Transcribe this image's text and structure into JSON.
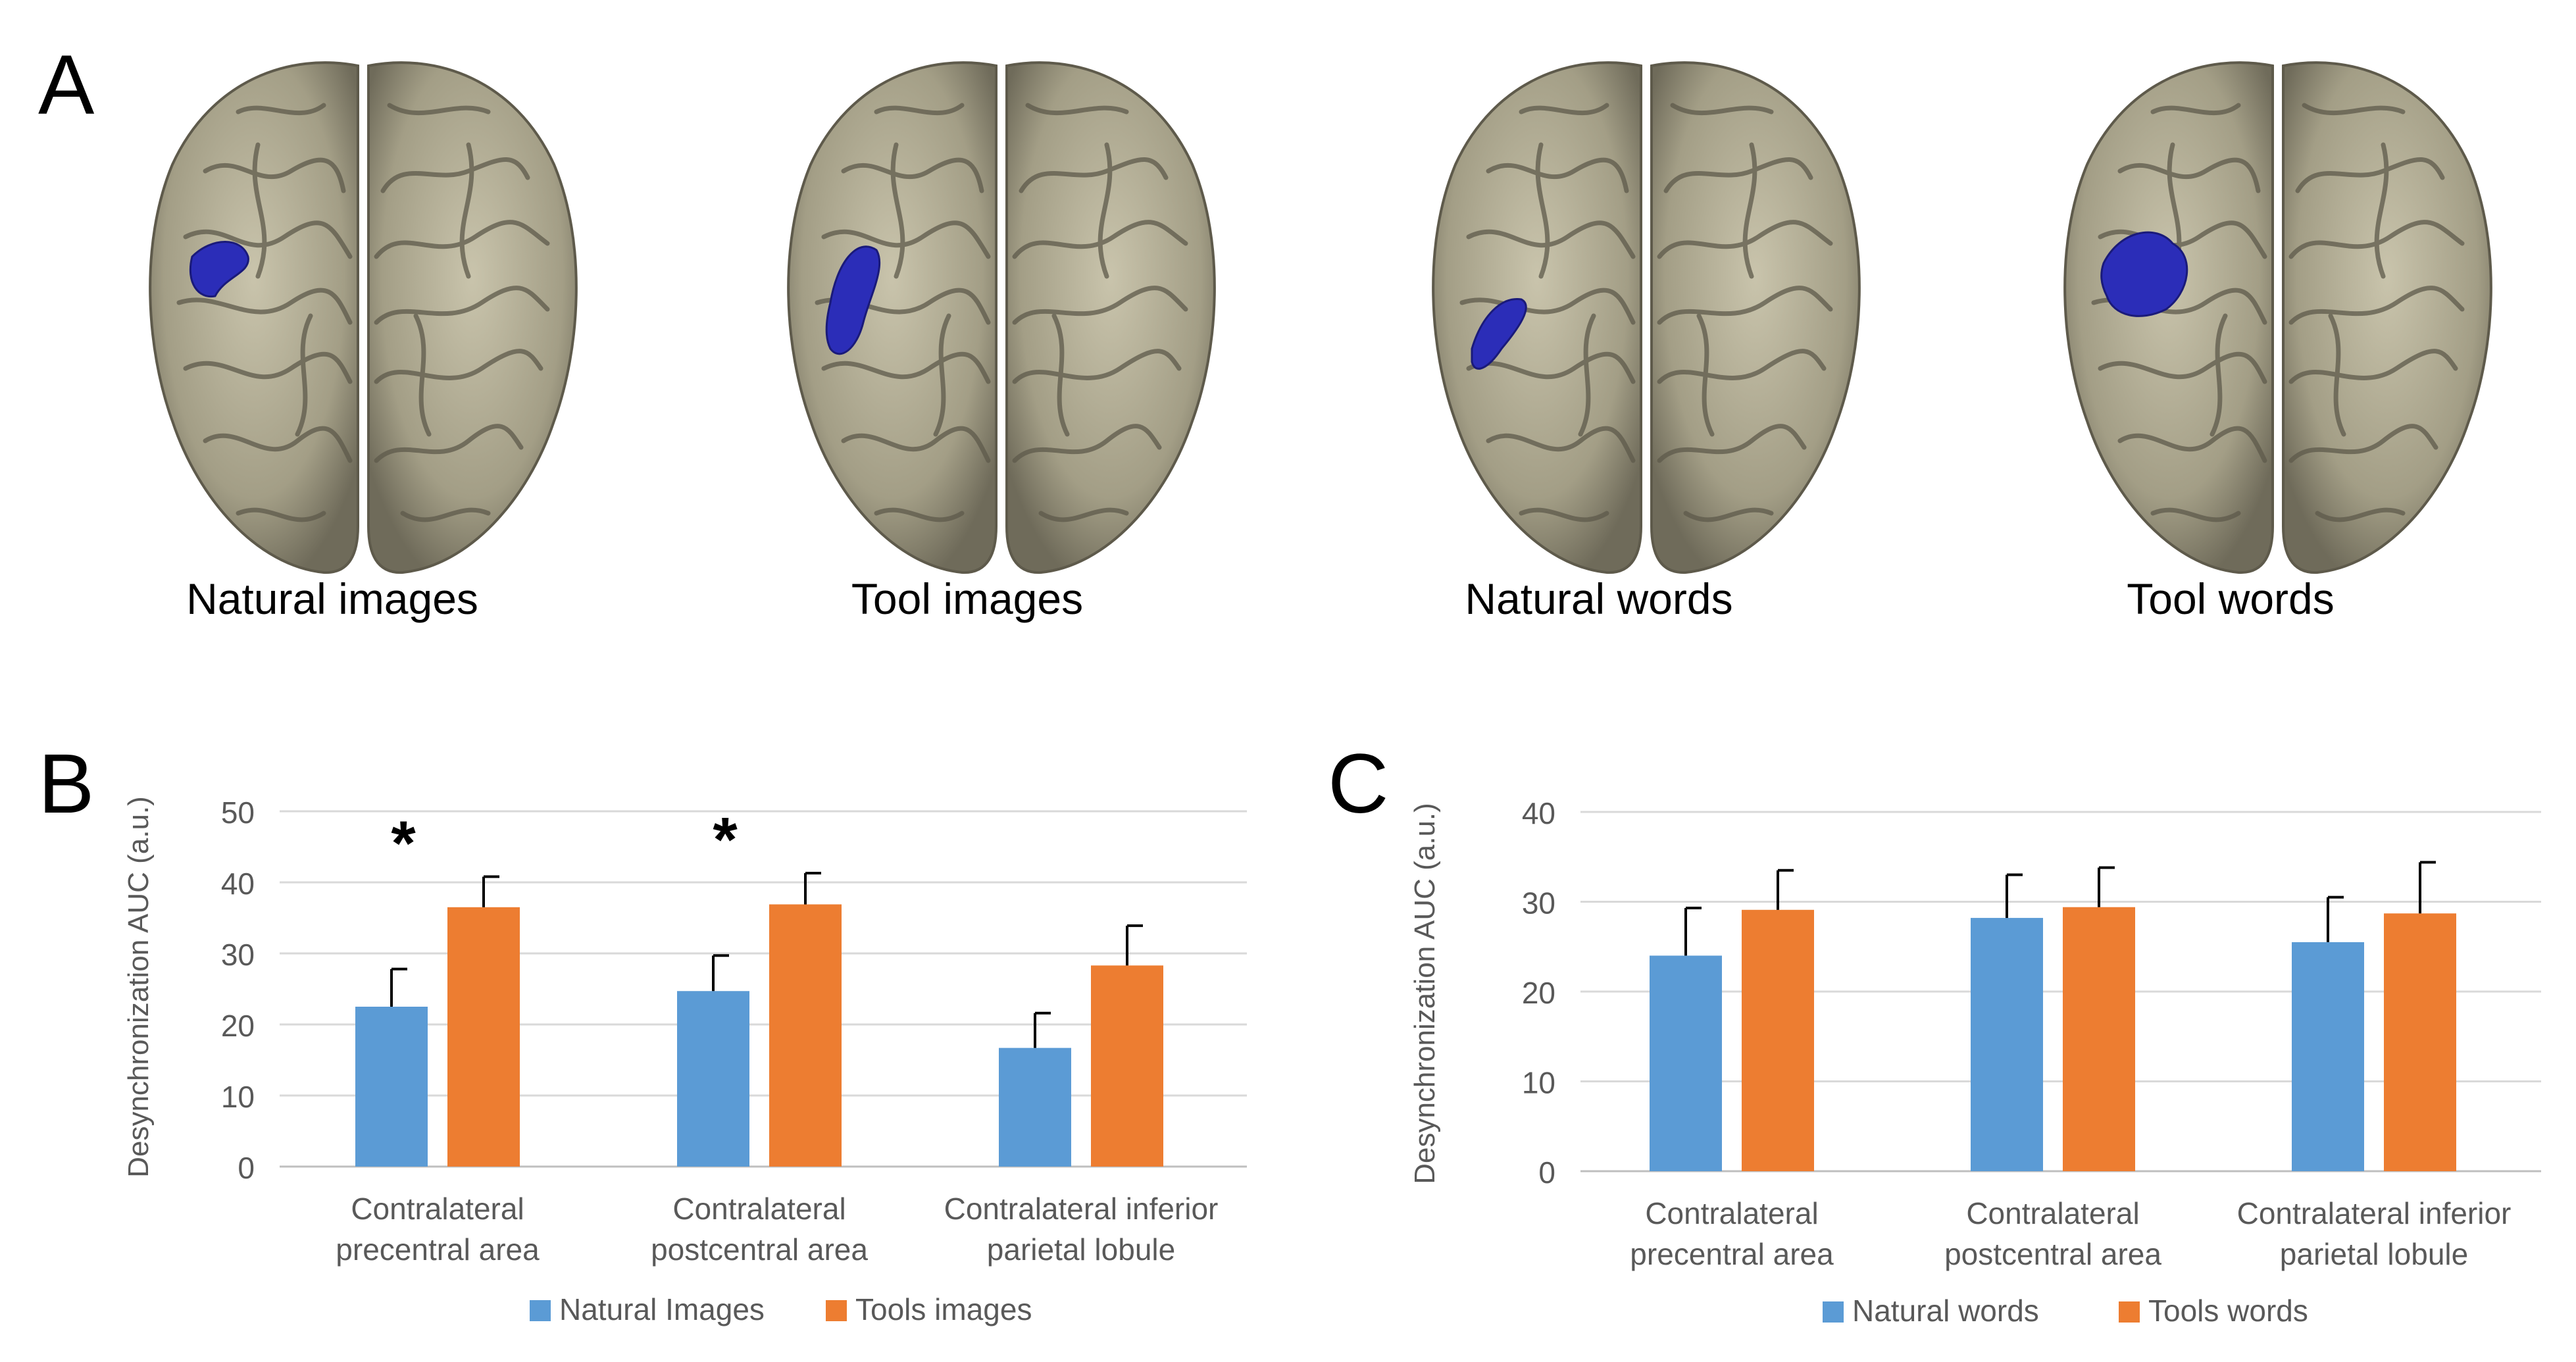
{
  "panels": {
    "a": {
      "letter": "A"
    },
    "b": {
      "letter": "B"
    },
    "c": {
      "letter": "C"
    }
  },
  "brains": [
    {
      "caption": "Natural images"
    },
    {
      "caption": "Tool images"
    },
    {
      "caption": "Natural words"
    },
    {
      "caption": "Tool words"
    }
  ],
  "colors": {
    "series1": "#5B9BD5",
    "series2": "#ED7D31",
    "grid": "#D9D9D9",
    "axis_text": "#595959",
    "cortex": "#A39E86",
    "activation": "#2B2DB8"
  },
  "chart_data": [
    {
      "type": "bar",
      "ylabel": "Desynchronization AUC (a.u.)",
      "ylim": [
        0,
        50
      ],
      "yticks": [
        0,
        10,
        20,
        30,
        40,
        50
      ],
      "grid": true,
      "legend_position": "bottom",
      "categories": [
        [
          "Contralateral",
          "precentral area"
        ],
        [
          "Contralateral",
          "postcentral area"
        ],
        [
          "Contralateral inferior",
          "parietal lobule"
        ]
      ],
      "series": [
        {
          "name": "Natural Images",
          "values": [
            22.5,
            24.7,
            16.7
          ],
          "errors": [
            5.3,
            5.0,
            4.9
          ]
        },
        {
          "name": "Tools images",
          "values": [
            36.5,
            36.9,
            28.3
          ],
          "errors": [
            4.3,
            4.4,
            5.6
          ]
        }
      ],
      "annotations": [
        "*",
        "*",
        ""
      ]
    },
    {
      "type": "bar",
      "ylabel": "Desynchronization AUC (a.u.)",
      "ylim": [
        0,
        40
      ],
      "yticks": [
        0,
        10,
        20,
        30,
        40
      ],
      "grid": true,
      "legend_position": "bottom",
      "categories": [
        [
          "Contralateral",
          "precentral area"
        ],
        [
          "Contralateral",
          "postcentral area"
        ],
        [
          "Contralateral inferior",
          "parietal lobule"
        ]
      ],
      "series": [
        {
          "name": "Natural words",
          "values": [
            24.0,
            28.2,
            25.5
          ],
          "errors": [
            5.3,
            4.8,
            5.0
          ]
        },
        {
          "name": "Tools words",
          "values": [
            29.1,
            29.4,
            28.7
          ],
          "errors": [
            4.4,
            4.4,
            5.7
          ]
        }
      ],
      "annotations": [
        "",
        "",
        ""
      ]
    }
  ]
}
